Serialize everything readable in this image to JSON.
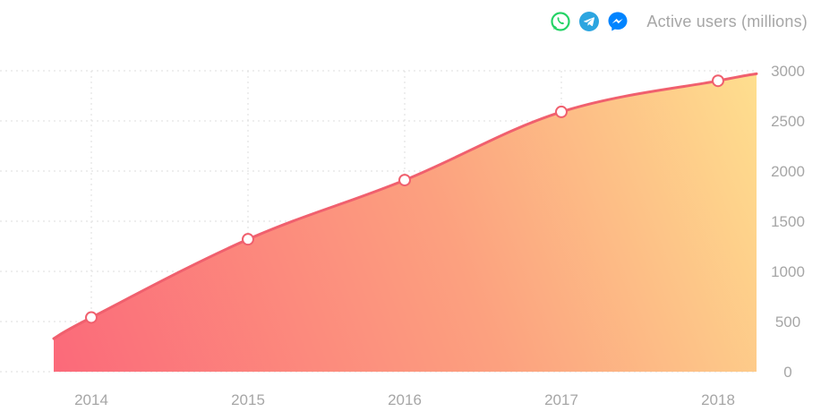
{
  "header": {
    "title": "Active users (millions)",
    "icons": [
      "whatsapp-icon",
      "telegram-icon",
      "messenger-icon"
    ]
  },
  "colors": {
    "line": "#f0606e",
    "area_start": "#fb6a7a",
    "area_mid": "#fca17f",
    "area_end": "#fede8e",
    "grid": "#dddddd",
    "tick_text": "#a6a6a6",
    "whatsapp": "#25d366",
    "telegram": "#2ca5e0",
    "messenger": "#0084ff"
  },
  "chart_data": {
    "type": "area",
    "x": [
      "2014",
      "2015",
      "2016",
      "2017",
      "2018"
    ],
    "x_ticks": [
      "2014",
      "2015",
      "2016",
      "2017",
      "2018"
    ],
    "y_ticks": [
      0,
      500,
      1000,
      1500,
      2000,
      2500,
      3000
    ],
    "ylim": [
      0,
      3000
    ],
    "y_axis_position": "right",
    "grid": true,
    "legend_placement": "top-right",
    "series": [
      {
        "values": [
          540,
          1320,
          1910,
          2590,
          2900
        ],
        "markers": true
      }
    ],
    "line_start_value": 330,
    "line_end_value": 2970
  }
}
